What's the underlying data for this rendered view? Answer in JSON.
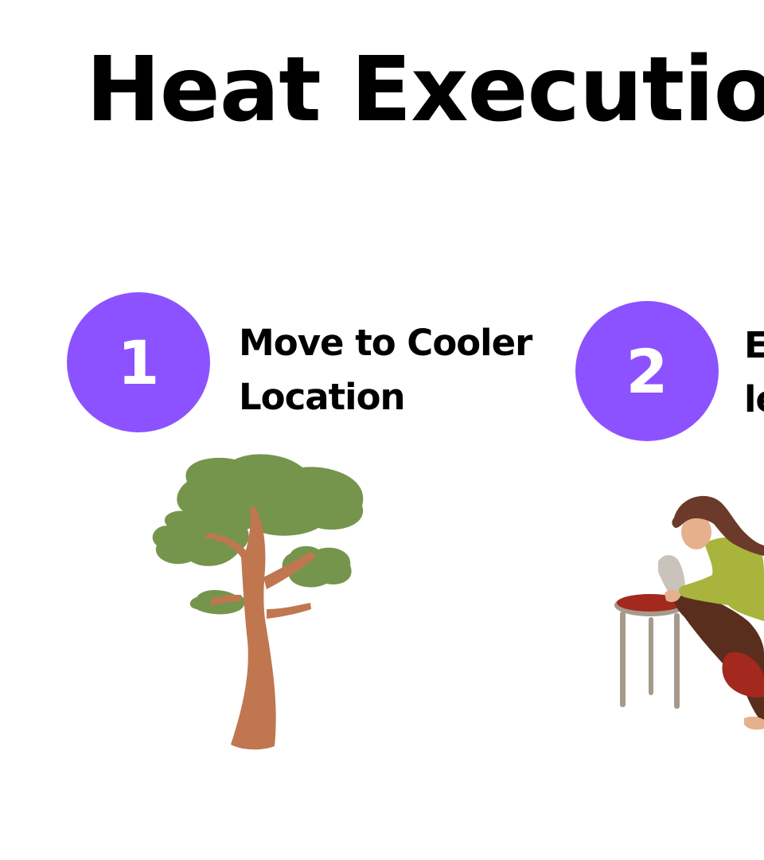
{
  "title": "Heat Executio",
  "steps": [
    {
      "number": "1",
      "label_lines": [
        "Move to Cooler",
        "Location"
      ],
      "illustration": "tree-icon"
    },
    {
      "number": "2",
      "label_lines": [
        "E",
        "le"
      ],
      "illustration": "person-elevating-legs-icon"
    }
  ],
  "colors": {
    "accent": "#8c52ff",
    "foliage": "#76954c",
    "trunk": "#c0764f",
    "stool_seat": "#a3281e",
    "shirt": "#a8b43b",
    "pants": "#5a2e1c",
    "hair": "#6b3a2a"
  }
}
